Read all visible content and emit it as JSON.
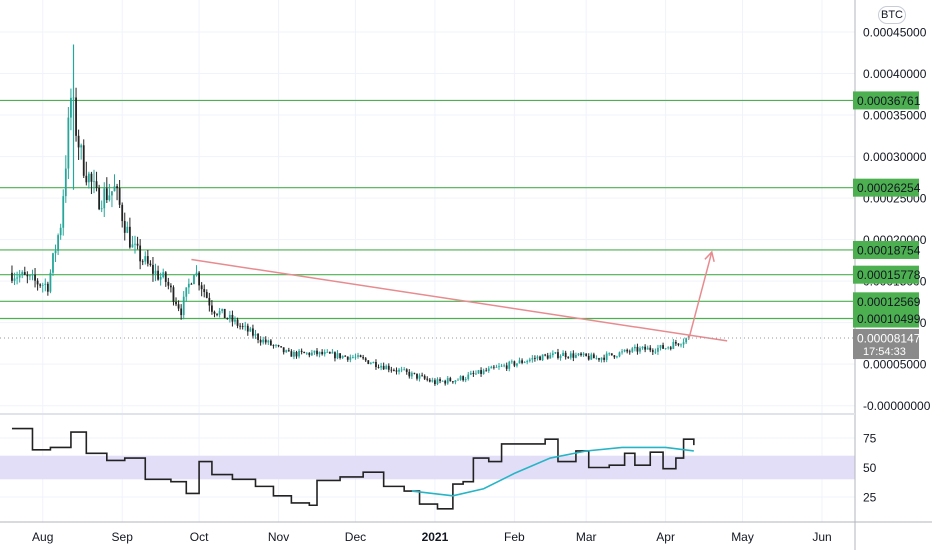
{
  "currency_button": "BTC",
  "colors": {
    "up": "#26a69a",
    "down": "#222222",
    "level": "#4caf50",
    "level_label_bg": "#4caf50",
    "trendline": "#e88b8f",
    "rsi_line": "#222222",
    "rsi_ma": "#26b5c6",
    "rsi_band": "#e3def7",
    "current_price_bg": "#8a8a8a"
  },
  "chart_data": [
    {
      "type": "candlestick",
      "title": "",
      "y_axis_labels": [
        "0.00045000",
        "0.00040000",
        "0.00035000",
        "0.00030000",
        "0.00025000",
        "0.00020000",
        "0.00015000",
        "0.00010000",
        "0.00005000",
        "-0.00000000"
      ],
      "ylim": [
        -1e-05,
        0.000485
      ],
      "x_axis_labels": [
        "Aug",
        "Sep",
        "Oct",
        "Nov",
        "Dec",
        "2021",
        "Feb",
        "Mar",
        "Apr",
        "May",
        "Jun"
      ],
      "horizontal_levels": [
        "0.00036761",
        "0.00026254",
        "0.00018754",
        "0.00015778",
        "0.00012569",
        "0.00010499"
      ],
      "current_price": "0.00008147",
      "countdown": "17:54:33",
      "trendline": {
        "from": [
          "2020-09-28",
          0.000176
        ],
        "to": [
          "2021-04-25",
          7.8e-05
        ]
      },
      "arrow": {
        "from": [
          "2021-04-10",
          8e-05
        ],
        "to": [
          "2021-04-19",
          0.000185
        ]
      },
      "series": [
        {
          "name": "",
          "anchors": [
            [
              "2020-07-20",
              0.00016
            ],
            [
              "2020-07-28",
              0.00015
            ],
            [
              "2020-08-03",
              0.000145
            ],
            [
              "2020-08-08",
              0.00022
            ],
            [
              "2020-08-12",
              0.00037
            ],
            [
              "2020-08-16",
              0.0003
            ],
            [
              "2020-08-22",
              0.00025
            ],
            [
              "2020-08-29",
              0.00026
            ],
            [
              "2020-09-05",
              0.00019
            ],
            [
              "2020-09-12",
              0.000165
            ],
            [
              "2020-09-18",
              0.00015
            ],
            [
              "2020-09-24",
              0.000115
            ],
            [
              "2020-09-29",
              0.000165
            ],
            [
              "2020-10-06",
              0.000118
            ],
            [
              "2020-10-15",
              0.0001
            ],
            [
              "2020-10-25",
              8e-05
            ],
            [
              "2020-11-05",
              6.2e-05
            ],
            [
              "2020-11-15",
              6.3e-05
            ],
            [
              "2020-12-01",
              5.8e-05
            ],
            [
              "2020-12-15",
              4.5e-05
            ],
            [
              "2021-01-01",
              2.8e-05
            ],
            [
              "2021-01-10",
              3.2e-05
            ],
            [
              "2021-01-25",
              4.5e-05
            ],
            [
              "2021-02-10",
              5.8e-05
            ],
            [
              "2021-02-20",
              6.2e-05
            ],
            [
              "2021-03-05",
              5.7e-05
            ],
            [
              "2021-03-20",
              6.7e-05
            ],
            [
              "2021-04-01",
              7e-05
            ],
            [
              "2021-04-10",
              8.2e-05
            ]
          ]
        }
      ]
    },
    {
      "type": "line",
      "title": "",
      "y_axis_labels": [
        "75",
        "50",
        "25"
      ],
      "ylim": [
        10,
        90
      ],
      "band": [
        40,
        60
      ],
      "series": [
        {
          "name": "",
          "points": [
            [
              "2020-07-20",
              83
            ],
            [
              "2020-07-28",
              65
            ],
            [
              "2020-08-04",
              67
            ],
            [
              "2020-08-12",
              80
            ],
            [
              "2020-08-18",
              62
            ],
            [
              "2020-08-26",
              56
            ],
            [
              "2020-09-02",
              58
            ],
            [
              "2020-09-10",
              40
            ],
            [
              "2020-09-20",
              38
            ],
            [
              "2020-09-26",
              28
            ],
            [
              "2020-10-01",
              55
            ],
            [
              "2020-10-06",
              44
            ],
            [
              "2020-10-14",
              40
            ],
            [
              "2020-10-23",
              34
            ],
            [
              "2020-10-30",
              26
            ],
            [
              "2020-11-06",
              20
            ],
            [
              "2020-11-13",
              18
            ],
            [
              "2020-11-16",
              39
            ],
            [
              "2020-11-25",
              42
            ],
            [
              "2020-12-04",
              46
            ],
            [
              "2020-12-12",
              34
            ],
            [
              "2020-12-20",
              30
            ],
            [
              "2020-12-26",
              19
            ],
            [
              "2021-01-02",
              15
            ],
            [
              "2021-01-08",
              36
            ],
            [
              "2021-01-12",
              38
            ],
            [
              "2021-01-16",
              58
            ],
            [
              "2021-01-22",
              55
            ],
            [
              "2021-01-27",
              70
            ],
            [
              "2021-02-05",
              70
            ],
            [
              "2021-02-13",
              74
            ],
            [
              "2021-02-18",
              55
            ],
            [
              "2021-02-25",
              64
            ],
            [
              "2021-03-02",
              50
            ],
            [
              "2021-03-10",
              52
            ],
            [
              "2021-03-16",
              62
            ],
            [
              "2021-03-20",
              52
            ],
            [
              "2021-03-26",
              63
            ],
            [
              "2021-03-31",
              49
            ],
            [
              "2021-04-05",
              58
            ],
            [
              "2021-04-08",
              74
            ],
            [
              "2021-04-12",
              69
            ]
          ]
        },
        {
          "name": "",
          "points": [
            [
              "2020-12-23",
              30
            ],
            [
              "2021-01-08",
              26
            ],
            [
              "2021-01-20",
              32
            ],
            [
              "2021-02-01",
              45
            ],
            [
              "2021-02-15",
              58
            ],
            [
              "2021-03-01",
              64
            ],
            [
              "2021-03-15",
              67
            ],
            [
              "2021-04-01",
              67
            ],
            [
              "2021-04-12",
              64
            ]
          ]
        }
      ]
    }
  ]
}
